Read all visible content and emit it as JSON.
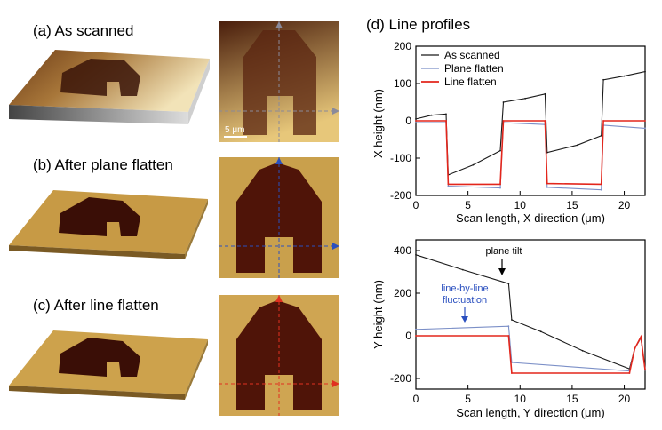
{
  "panels": {
    "a": "(a) As scanned",
    "b": "(b) After plane flatten",
    "c": "(c) After line flatten",
    "d": "(d) Line profiles"
  },
  "scale_bar": "5 μm",
  "colors": {
    "as_scanned": "#1a1a1a",
    "plane_flatten": "#7b8fc7",
    "line_flatten": "#e3261c",
    "map_high": "#d4a94e",
    "map_low": "#5a1a10",
    "guide_a": "#8a8a9a",
    "guide_b": "#2a4fbf",
    "guide_c": "#e03020"
  },
  "chart_data": [
    {
      "type": "line",
      "xlabel": "Scan length, X direction (μm)",
      "ylabel": "X height (nm)",
      "xlim": [
        0,
        22
      ],
      "ylim": [
        -200,
        200
      ],
      "xticks": [
        0,
        5,
        10,
        15,
        20
      ],
      "yticks": [
        -200,
        -100,
        0,
        100,
        200
      ],
      "legend": "top-left",
      "series": [
        {
          "name": "As scanned",
          "x": [
            0,
            1.5,
            2.9,
            3.1,
            5.5,
            8.1,
            8.4,
            10.5,
            12.4,
            12.6,
            15.5,
            17.8,
            18.0,
            20.0,
            22.0
          ],
          "y": [
            5,
            15,
            18,
            -145,
            -118,
            -80,
            50,
            60,
            72,
            -85,
            -65,
            -40,
            110,
            120,
            132
          ]
        },
        {
          "name": "Plane flatten",
          "x": [
            0,
            2.9,
            3.1,
            8.1,
            8.4,
            12.4,
            12.6,
            17.8,
            18.0,
            22.0
          ],
          "y": [
            -5,
            -5,
            -175,
            -180,
            -5,
            -10,
            -178,
            -185,
            -12,
            -20
          ]
        },
        {
          "name": "Line flatten",
          "x": [
            0,
            2.9,
            3.1,
            8.1,
            8.4,
            12.4,
            12.6,
            17.8,
            18.0,
            22.0
          ],
          "y": [
            0,
            0,
            -170,
            -170,
            0,
            0,
            -168,
            -170,
            0,
            0
          ]
        }
      ]
    },
    {
      "type": "line",
      "xlabel": "Scan length, Y direction (μm)",
      "ylabel": "Y height (nm)",
      "xlim": [
        0,
        22
      ],
      "ylim": [
        -250,
        450
      ],
      "xticks": [
        0,
        5,
        10,
        15,
        20
      ],
      "yticks": [
        -200,
        0,
        200,
        400
      ],
      "annotations": [
        "plane tilt",
        "line-by-line",
        "fluctuation"
      ],
      "series": [
        {
          "name": "As scanned",
          "x": [
            0,
            4.5,
            8.9,
            9.2,
            12.0,
            16.0,
            20.5,
            21.0,
            21.6,
            22.0
          ],
          "y": [
            380,
            310,
            245,
            75,
            20,
            -70,
            -155,
            -60,
            -10,
            -160
          ]
        },
        {
          "name": "Plane flatten",
          "x": [
            0,
            8.9,
            9.2,
            20.5,
            21.0,
            21.6,
            22.0
          ],
          "y": [
            30,
            45,
            -125,
            -165,
            -60,
            -10,
            -160
          ]
        },
        {
          "name": "Line flatten",
          "x": [
            0,
            8.9,
            9.2,
            20.5,
            21.0,
            21.6,
            22.0
          ],
          "y": [
            0,
            0,
            -175,
            -175,
            -60,
            -5,
            -160
          ]
        }
      ]
    }
  ]
}
